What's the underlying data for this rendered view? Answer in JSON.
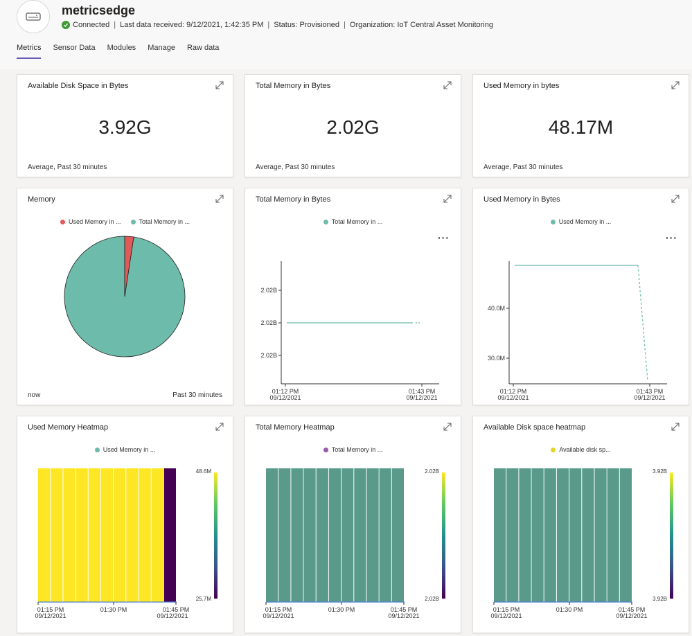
{
  "device": {
    "name": "metricsedge",
    "status": "Connected",
    "last_data": "Last data received: 9/12/2021, 1:42:35 PM",
    "provisioning": "Status: Provisioned",
    "organization": "Organization: IoT Central Asset Monitoring"
  },
  "tabs": [
    {
      "label": "Metrics",
      "active": true
    },
    {
      "label": "Sensor Data",
      "active": false
    },
    {
      "label": "Modules",
      "active": false
    },
    {
      "label": "Manage",
      "active": false
    },
    {
      "label": "Raw data",
      "active": false
    }
  ],
  "kpis": [
    {
      "title": "Available Disk Space in Bytes",
      "value": "3.92G",
      "footer": "Average, Past 30 minutes"
    },
    {
      "title": "Total Memory in Bytes",
      "value": "2.02G",
      "footer": "Average, Past 30 minutes"
    },
    {
      "title": "Used Memory in bytes",
      "value": "48.17M",
      "footer": "Average, Past 30 minutes"
    }
  ],
  "colors": {
    "used_memory": "#e05a5a",
    "total_memory": "#6dbbaa",
    "total_memory_heatmap_legend": "#9b5aa8",
    "disk_legend": "#e8d22a",
    "accent": "#6b58b8"
  },
  "pie": {
    "title": "Memory",
    "legend": [
      "Used Memory in ...",
      "Total Memory in ..."
    ],
    "footer_left": "now",
    "footer_right": "Past 30 minutes"
  },
  "line_total": {
    "title": "Total Memory in Bytes",
    "legend": "Total Memory in ...",
    "yticks": [
      "2.02B",
      "2.02B",
      "2.02B"
    ],
    "xticks": [
      {
        "time": "01:12 PM",
        "date": "09/12/2021"
      },
      {
        "time": "01:43 PM",
        "date": "09/12/2021"
      }
    ]
  },
  "line_used": {
    "title": "Used Memory in Bytes",
    "legend": "Used Memory in ...",
    "yticks": [
      "40.0M",
      "30.0M"
    ],
    "xticks": [
      {
        "time": "01:12 PM",
        "date": "09/12/2021"
      },
      {
        "time": "01:43 PM",
        "date": "09/12/2021"
      }
    ]
  },
  "heat_used": {
    "title": "Used Memory Heatmap",
    "legend": "Used Memory in ...",
    "scale_max": "48.6M",
    "scale_min": "25.7M",
    "xticks": [
      {
        "time": "01:15 PM",
        "date": "09/12/2021"
      },
      {
        "time": "01:30 PM",
        "date": ""
      },
      {
        "time": "01:45 PM",
        "date": "09/12/2021"
      }
    ]
  },
  "heat_total": {
    "title": "Total Memory Heatmap",
    "legend": "Total Memory in ...",
    "scale_max": "2.02B",
    "scale_min": "2.02B",
    "xticks": [
      {
        "time": "01:15 PM",
        "date": "09/12/2021"
      },
      {
        "time": "01:30 PM",
        "date": ""
      },
      {
        "time": "01:45 PM",
        "date": "09/12/2021"
      }
    ]
  },
  "heat_disk": {
    "title": "Available Disk space heatmap",
    "legend": "Available disk sp...",
    "scale_max": "3.92B",
    "scale_min": "3.92B",
    "xticks": [
      {
        "time": "01:15 PM",
        "date": "09/12/2021"
      },
      {
        "time": "01:30 PM",
        "date": ""
      },
      {
        "time": "01:45 PM",
        "date": "09/12/2021"
      }
    ]
  },
  "chart_data": [
    {
      "type": "pie",
      "title": "Memory",
      "categories": [
        "Used Memory in ...",
        "Total Memory in ..."
      ],
      "values": [
        48.17,
        2020
      ]
    },
    {
      "type": "line",
      "title": "Total Memory in Bytes",
      "series": [
        {
          "name": "Total Memory in ...",
          "x": [
            "01:12 PM",
            "01:43 PM"
          ],
          "values": [
            2.02,
            2.02
          ]
        }
      ]
    },
    {
      "type": "line",
      "title": "Used Memory in Bytes",
      "series": [
        {
          "name": "Used Memory in ...",
          "x": [
            "01:12 PM",
            "01:42 PM",
            "01:43 PM"
          ],
          "values": [
            48.6,
            48.5,
            25.7
          ]
        }
      ]
    },
    {
      "type": "heatmap",
      "title": "Used Memory Heatmap",
      "range": [
        "25.7M",
        "48.6M"
      ],
      "values": [
        48.6,
        48.6,
        48.6,
        48.6,
        48.6,
        48.6,
        48.6,
        48.6,
        48.6,
        48.6,
        25.7
      ]
    },
    {
      "type": "heatmap",
      "title": "Total Memory Heatmap",
      "range": [
        "2.02B",
        "2.02B"
      ],
      "values": [
        2.02,
        2.02,
        2.02,
        2.02,
        2.02,
        2.02,
        2.02,
        2.02,
        2.02,
        2.02,
        2.02
      ]
    },
    {
      "type": "heatmap",
      "title": "Available Disk space heatmap",
      "range": [
        "3.92B",
        "3.92B"
      ],
      "values": [
        3.92,
        3.92,
        3.92,
        3.92,
        3.92,
        3.92,
        3.92,
        3.92,
        3.92,
        3.92,
        3.92
      ]
    }
  ]
}
